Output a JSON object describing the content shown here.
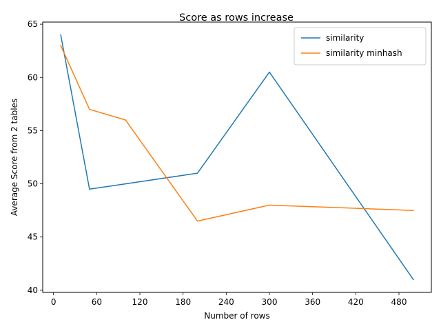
{
  "chart_data": {
    "type": "line",
    "title": "Score as rows increase",
    "xlabel": "Number of rows",
    "ylabel": "Average Score from 2 tables",
    "xlim": [
      -15,
      525
    ],
    "ylim": [
      39.8,
      65.2
    ],
    "xticks": [
      0,
      60,
      120,
      180,
      240,
      300,
      360,
      420,
      480
    ],
    "yticks": [
      40,
      45,
      50,
      55,
      60,
      65
    ],
    "grid": false,
    "legend_position": "top-right",
    "series": [
      {
        "name": "similarity",
        "color": "#1f77b4",
        "x": [
          10,
          50,
          100,
          200,
          300,
          500
        ],
        "y": [
          64,
          49.5,
          50,
          51,
          60.5,
          41
        ]
      },
      {
        "name": "similarity minhash",
        "color": "#ff7f0e",
        "x": [
          10,
          50,
          100,
          200,
          300,
          500
        ],
        "y": [
          63,
          57,
          56,
          46.5,
          48,
          47.5
        ]
      }
    ]
  }
}
